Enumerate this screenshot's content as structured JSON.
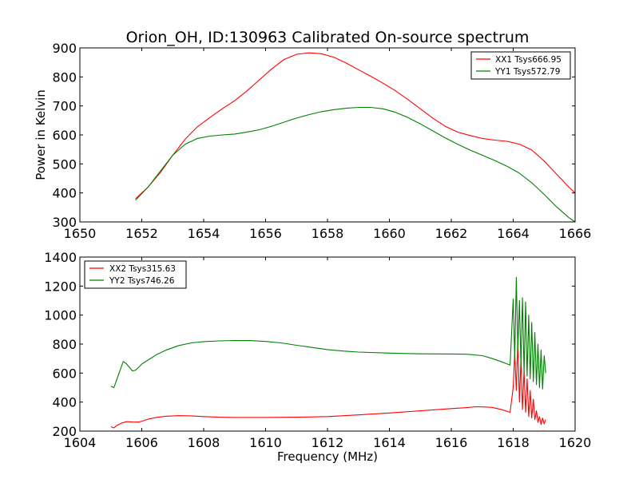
{
  "title": "Orion_OH, ID:130963 Calibrated On-source spectrum",
  "xlabel_bottom": "Frequency (MHz)",
  "ylabel_top": "Power in Kelvin",
  "colors": {
    "red": "#ff0000",
    "green": "#008000"
  },
  "chart_data": [
    {
      "type": "line",
      "xlim": [
        1650,
        1666
      ],
      "ylim": [
        300,
        900
      ],
      "xticks": [
        1650,
        1652,
        1654,
        1656,
        1658,
        1660,
        1662,
        1664,
        1666
      ],
      "yticks": [
        300,
        400,
        500,
        600,
        700,
        800,
        900
      ],
      "legend_position": "top-right",
      "series": [
        {
          "name": "XX1 Tsys666.95",
          "color": "#ff0000",
          "x": [
            1651.8,
            1652.2,
            1652.6,
            1653.0,
            1653.4,
            1653.8,
            1654.2,
            1654.6,
            1655.0,
            1655.4,
            1655.8,
            1656.2,
            1656.6,
            1657.0,
            1657.4,
            1657.8,
            1658.2,
            1658.6,
            1659.0,
            1659.4,
            1659.8,
            1660.2,
            1660.6,
            1661.0,
            1661.4,
            1661.8,
            1662.2,
            1662.6,
            1663.0,
            1663.4,
            1663.8,
            1664.2,
            1664.6,
            1665.0,
            1665.4,
            1665.8,
            1666.0
          ],
          "y": [
            380,
            420,
            470,
            530,
            585,
            628,
            660,
            690,
            718,
            752,
            790,
            828,
            860,
            878,
            883,
            880,
            868,
            848,
            825,
            802,
            778,
            752,
            722,
            690,
            658,
            630,
            610,
            598,
            588,
            582,
            578,
            568,
            548,
            510,
            465,
            420,
            400
          ]
        },
        {
          "name": "YY1 Tsys572.79",
          "color": "#008000",
          "x": [
            1651.8,
            1652.2,
            1652.6,
            1653.0,
            1653.4,
            1653.8,
            1654.2,
            1654.6,
            1655.0,
            1655.4,
            1655.8,
            1656.2,
            1656.6,
            1657.0,
            1657.4,
            1657.8,
            1658.2,
            1658.6,
            1659.0,
            1659.4,
            1659.8,
            1660.2,
            1660.6,
            1661.0,
            1661.4,
            1661.8,
            1662.2,
            1662.6,
            1663.0,
            1663.4,
            1663.8,
            1664.2,
            1664.6,
            1665.0,
            1665.4,
            1665.8,
            1666.0
          ],
          "y": [
            375,
            420,
            475,
            530,
            568,
            588,
            596,
            600,
            603,
            610,
            618,
            630,
            644,
            658,
            670,
            680,
            687,
            692,
            695,
            695,
            690,
            678,
            660,
            638,
            614,
            590,
            568,
            548,
            530,
            512,
            492,
            468,
            435,
            395,
            352,
            315,
            300
          ]
        }
      ]
    },
    {
      "type": "line",
      "xlim": [
        1604,
        1620
      ],
      "ylim": [
        200,
        1400
      ],
      "xticks": [
        1604,
        1606,
        1608,
        1610,
        1612,
        1614,
        1616,
        1618,
        1620
      ],
      "yticks": [
        200,
        400,
        600,
        800,
        1000,
        1200,
        1400
      ],
      "xlabel": "Frequency (MHz)",
      "legend_position": "top-left",
      "series": [
        {
          "name": "XX2 Tsys315.63",
          "color": "#ff0000",
          "x": [
            1605.0,
            1605.1,
            1605.2,
            1605.35,
            1605.5,
            1605.7,
            1605.9,
            1606.0,
            1606.2,
            1606.5,
            1606.8,
            1607.2,
            1607.6,
            1608.0,
            1608.5,
            1609.0,
            1610.0,
            1611.0,
            1612.0,
            1613.0,
            1614.0,
            1615.0,
            1616.0,
            1616.5,
            1616.8,
            1617.0,
            1617.3,
            1617.6,
            1617.9,
            1618.0,
            1618.05,
            1618.1,
            1618.15,
            1618.2,
            1618.25,
            1618.3,
            1618.35,
            1618.4,
            1618.45,
            1618.5,
            1618.55,
            1618.6,
            1618.65,
            1618.7,
            1618.75,
            1618.8,
            1618.85,
            1618.9,
            1618.95,
            1619.0,
            1619.05
          ],
          "y": [
            230,
            222,
            240,
            255,
            265,
            263,
            262,
            268,
            282,
            295,
            303,
            306,
            305,
            300,
            296,
            294,
            294,
            296,
            300,
            312,
            325,
            340,
            355,
            362,
            368,
            367,
            364,
            350,
            330,
            500,
            740,
            480,
            820,
            400,
            700,
            350,
            620,
            330,
            560,
            300,
            480,
            290,
            420,
            280,
            340,
            260,
            300,
            245,
            290,
            250,
            280
          ]
        },
        {
          "name": "YY2 Tsys746.26",
          "color": "#008000",
          "x": [
            1605.0,
            1605.1,
            1605.2,
            1605.3,
            1605.4,
            1605.5,
            1605.6,
            1605.7,
            1605.8,
            1605.9,
            1606.0,
            1606.2,
            1606.5,
            1606.8,
            1607.2,
            1607.6,
            1608.0,
            1608.5,
            1609.0,
            1609.5,
            1610.0,
            1610.5,
            1611.0,
            1611.5,
            1612.0,
            1612.5,
            1613.0,
            1614.0,
            1615.0,
            1616.0,
            1616.5,
            1617.0,
            1617.3,
            1617.6,
            1617.9,
            1618.0,
            1618.05,
            1618.1,
            1618.15,
            1618.2,
            1618.25,
            1618.3,
            1618.35,
            1618.4,
            1618.45,
            1618.5,
            1618.55,
            1618.6,
            1618.65,
            1618.7,
            1618.75,
            1618.8,
            1618.85,
            1618.9,
            1618.95,
            1619.0,
            1619.05
          ],
          "y": [
            510,
            500,
            560,
            620,
            680,
            665,
            640,
            615,
            620,
            640,
            662,
            690,
            730,
            760,
            790,
            808,
            817,
            822,
            825,
            824,
            818,
            808,
            792,
            777,
            762,
            752,
            745,
            738,
            733,
            732,
            730,
            720,
            702,
            680,
            655,
            1110,
            700,
            1260,
            760,
            1100,
            650,
            1120,
            600,
            1090,
            580,
            1000,
            560,
            950,
            540,
            880,
            520,
            800,
            500,
            760,
            490,
            720,
            600
          ]
        }
      ]
    }
  ]
}
